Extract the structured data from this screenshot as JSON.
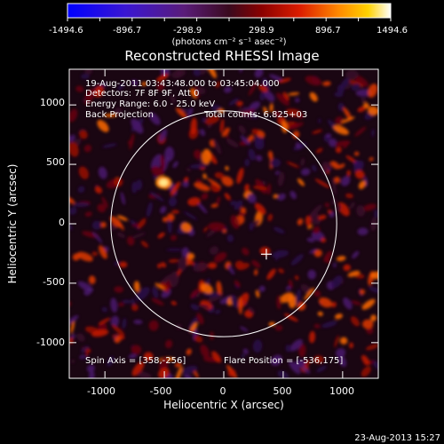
{
  "colorbar": {
    "ticks": [
      "-1494.6",
      "-896.7",
      "-298.9",
      "298.9",
      "896.7",
      "1494.6"
    ],
    "units": "(photons cm⁻² s⁻¹ asec⁻²)",
    "min": -1494.6,
    "max": 1494.6
  },
  "title": "Reconstructed RHESSI Image",
  "info": {
    "time": "19-Aug-2011 03:43:48.000 to 03:45:04.000",
    "detectors": "Detectors: 7F 8F 9F, Att 0",
    "energy": "Energy Range: 6.0 - 25.0 keV",
    "method": "Back Projection",
    "counts": "Total counts: 6.825+03"
  },
  "spin_axis": "Spin Axis = [358,-256]",
  "flare_position": "Flare Position = [-536,175]",
  "axes": {
    "xlabel": "Heliocentric X (arcsec)",
    "ylabel": "Heliocentric Y (arcsec)",
    "xlim": [
      -1300,
      1300
    ],
    "ylim": [
      -1300,
      1300
    ],
    "xticks": [
      -1000,
      -500,
      0,
      500,
      1000
    ],
    "yticks": [
      -1000,
      -500,
      0,
      500,
      1000
    ],
    "xtick_labels": [
      "-1000",
      "-500",
      "0",
      "500",
      "1000"
    ],
    "ytick_labels": [
      "-1000",
      "-500",
      "0",
      "500",
      "1000"
    ]
  },
  "solar_limb_radius": 950,
  "spin_axis_marker": {
    "x": 358,
    "y": -256
  },
  "footer_date": "23-Aug-2013 15:27",
  "colors": {
    "background": "#000000",
    "text": "#ffffff",
    "limb": "#ffffff"
  }
}
